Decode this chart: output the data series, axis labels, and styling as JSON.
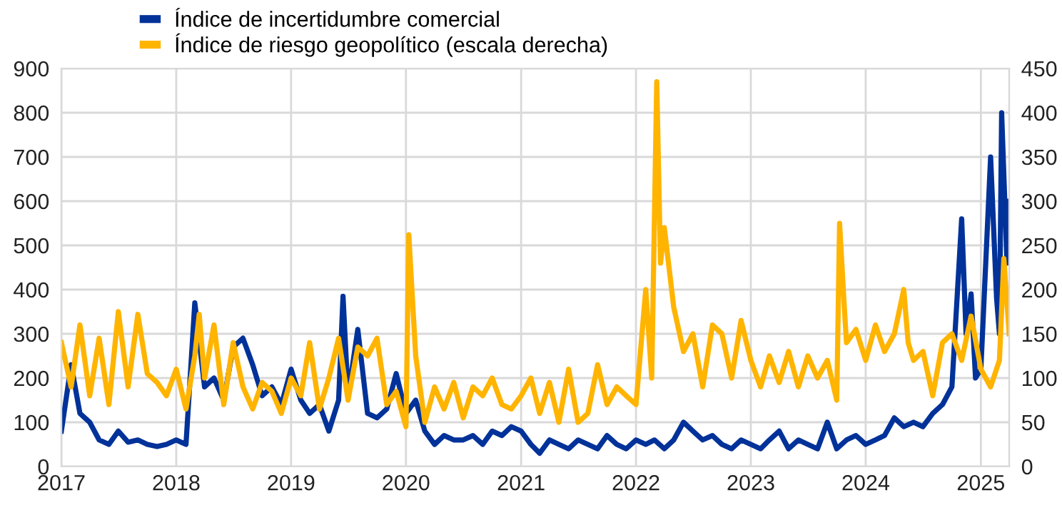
{
  "chart_data": {
    "type": "line",
    "legend": "top left",
    "grid": true,
    "marker": "none",
    "line_style": "solid",
    "xlim": [
      "2017-01-01",
      "2025-04-01"
    ],
    "xticks": [
      {
        "value": "2017-01-01",
        "label": "2017"
      },
      {
        "value": "2018-01-01",
        "label": "2018"
      },
      {
        "value": "2019-01-01",
        "label": "2019"
      },
      {
        "value": "2020-01-01",
        "label": "2020"
      },
      {
        "value": "2021-01-01",
        "label": "2021"
      },
      {
        "value": "2022-01-01",
        "label": "2022"
      },
      {
        "value": "2023-01-01",
        "label": "2023"
      },
      {
        "value": "2024-01-01",
        "label": "2024"
      },
      {
        "value": "2025-01-01",
        "label": "2025"
      }
    ],
    "ylim": [
      0,
      900
    ],
    "yticks": [
      0,
      100,
      200,
      300,
      400,
      500,
      600,
      700,
      800,
      900
    ],
    "y2lim": [
      0,
      450
    ],
    "y2ticks": [
      0,
      50,
      100,
      150,
      200,
      250,
      300,
      350,
      400,
      450
    ],
    "series": [
      {
        "name": "Índice de incertidumbre comercial",
        "color": "#003299",
        "x": [
          "2017-01",
          "2017-02",
          "2017-03",
          "2017-04",
          "2017-05",
          "2017-06",
          "2017-07",
          "2017-08",
          "2017-09",
          "2017-10",
          "2017-11",
          "2017-12",
          "2018-01",
          "2018-02",
          "2018-03",
          "2018-04",
          "2018-05",
          "2018-06",
          "2018-07",
          "2018-08",
          "2018-09",
          "2018-10",
          "2018-11",
          "2018-12",
          "2019-01",
          "2019-02",
          "2019-03",
          "2019-04",
          "2019-05",
          "2019-06",
          "2019-06-15",
          "2019-07",
          "2019-08",
          "2019-09",
          "2019-10",
          "2019-11",
          "2019-12",
          "2020-01",
          "2020-02",
          "2020-03",
          "2020-04",
          "2020-05",
          "2020-06",
          "2020-07",
          "2020-08",
          "2020-09",
          "2020-10",
          "2020-11",
          "2020-12",
          "2021-01",
          "2021-02",
          "2021-03",
          "2021-04",
          "2021-05",
          "2021-06",
          "2021-07",
          "2021-08",
          "2021-09",
          "2021-10",
          "2021-11",
          "2021-12",
          "2022-01",
          "2022-02",
          "2022-03",
          "2022-04",
          "2022-05",
          "2022-06",
          "2022-07",
          "2022-08",
          "2022-09",
          "2022-10",
          "2022-11",
          "2022-12",
          "2023-01",
          "2023-02",
          "2023-03",
          "2023-04",
          "2023-05",
          "2023-06",
          "2023-07",
          "2023-08",
          "2023-09",
          "2023-10",
          "2023-11",
          "2023-12",
          "2024-01",
          "2024-02",
          "2024-03",
          "2024-04",
          "2024-05",
          "2024-06",
          "2024-07",
          "2024-08",
          "2024-09",
          "2024-10",
          "2024-11-01",
          "2024-11-15",
          "2024-12-01",
          "2024-12-15",
          "2025-01-01",
          "2025-02-01",
          "2025-02-20",
          "2025-03-01",
          "2025-03-08",
          "2025-03-25",
          "2025-04-01"
        ],
        "values": [
          80,
          230,
          120,
          100,
          60,
          50,
          80,
          55,
          60,
          50,
          45,
          50,
          60,
          50,
          370,
          180,
          200,
          150,
          270,
          290,
          230,
          160,
          180,
          140,
          220,
          150,
          120,
          140,
          80,
          150,
          385,
          160,
          310,
          120,
          110,
          130,
          210,
          120,
          150,
          80,
          50,
          70,
          60,
          60,
          70,
          50,
          80,
          70,
          90,
          80,
          50,
          30,
          60,
          50,
          40,
          60,
          50,
          40,
          70,
          50,
          40,
          60,
          50,
          60,
          40,
          60,
          100,
          80,
          60,
          70,
          50,
          40,
          60,
          50,
          40,
          60,
          80,
          40,
          60,
          50,
          40,
          100,
          40,
          60,
          70,
          50,
          60,
          70,
          110,
          90,
          100,
          90,
          120,
          140,
          180,
          560,
          300,
          390,
          200,
          220,
          700,
          380,
          300,
          800,
          460,
          600
        ]
      },
      {
        "name": "Índice de riesgo geopolítico (escala derecha)",
        "color": "#ffb400",
        "axis": "y2",
        "x": [
          "2017-01",
          "2017-02",
          "2017-03",
          "2017-04",
          "2017-05",
          "2017-06",
          "2017-07",
          "2017-08",
          "2017-09",
          "2017-10",
          "2017-11",
          "2017-12",
          "2018-01",
          "2018-02",
          "2018-03",
          "2018-03-15",
          "2018-04",
          "2018-05",
          "2018-06",
          "2018-07",
          "2018-08",
          "2018-09",
          "2018-10",
          "2018-11",
          "2018-12",
          "2019-01",
          "2019-02",
          "2019-03",
          "2019-04",
          "2019-05",
          "2019-06",
          "2019-07",
          "2019-08",
          "2019-09",
          "2019-10",
          "2019-11",
          "2019-12",
          "2020-01-01",
          "2020-01-10",
          "2020-02",
          "2020-03",
          "2020-04",
          "2020-05",
          "2020-06",
          "2020-07",
          "2020-08",
          "2020-09",
          "2020-10",
          "2020-11",
          "2020-12",
          "2021-01",
          "2021-02",
          "2021-03",
          "2021-04",
          "2021-05",
          "2021-06",
          "2021-07",
          "2021-08",
          "2021-09",
          "2021-10",
          "2021-11",
          "2021-12",
          "2022-01",
          "2022-02-01",
          "2022-02-20",
          "2022-03-08",
          "2022-03-20",
          "2022-04",
          "2022-05",
          "2022-06",
          "2022-07",
          "2022-08",
          "2022-09",
          "2022-10",
          "2022-11",
          "2022-12",
          "2023-01",
          "2023-02",
          "2023-03",
          "2023-04",
          "2023-05",
          "2023-06",
          "2023-07",
          "2023-08",
          "2023-09",
          "2023-10-01",
          "2023-10-10",
          "2023-10-25",
          "2023-11",
          "2023-12",
          "2024-01",
          "2024-02",
          "2024-03",
          "2024-04",
          "2024-05-01",
          "2024-05-15",
          "2024-06",
          "2024-07",
          "2024-08",
          "2024-09",
          "2024-10",
          "2024-11",
          "2024-12",
          "2025-01",
          "2025-02",
          "2025-03-01",
          "2025-03-15",
          "2025-04-01"
        ],
        "values": [
          140,
          90,
          160,
          80,
          145,
          70,
          175,
          90,
          172,
          105,
          95,
          80,
          110,
          65,
          125,
          172,
          100,
          160,
          70,
          140,
          90,
          65,
          95,
          85,
          60,
          100,
          80,
          140,
          65,
          100,
          145,
          75,
          135,
          125,
          145,
          70,
          85,
          45,
          262,
          125,
          50,
          90,
          65,
          95,
          55,
          90,
          80,
          100,
          70,
          65,
          80,
          100,
          60,
          95,
          50,
          110,
          50,
          60,
          115,
          70,
          90,
          80,
          70,
          200,
          100,
          435,
          230,
          270,
          180,
          130,
          150,
          90,
          160,
          150,
          100,
          165,
          120,
          90,
          125,
          95,
          130,
          90,
          125,
          100,
          120,
          75,
          275,
          180,
          140,
          155,
          120,
          160,
          130,
          150,
          200,
          140,
          120,
          130,
          80,
          140,
          150,
          120,
          170,
          110,
          90,
          120,
          235,
          150
        ]
      }
    ]
  }
}
